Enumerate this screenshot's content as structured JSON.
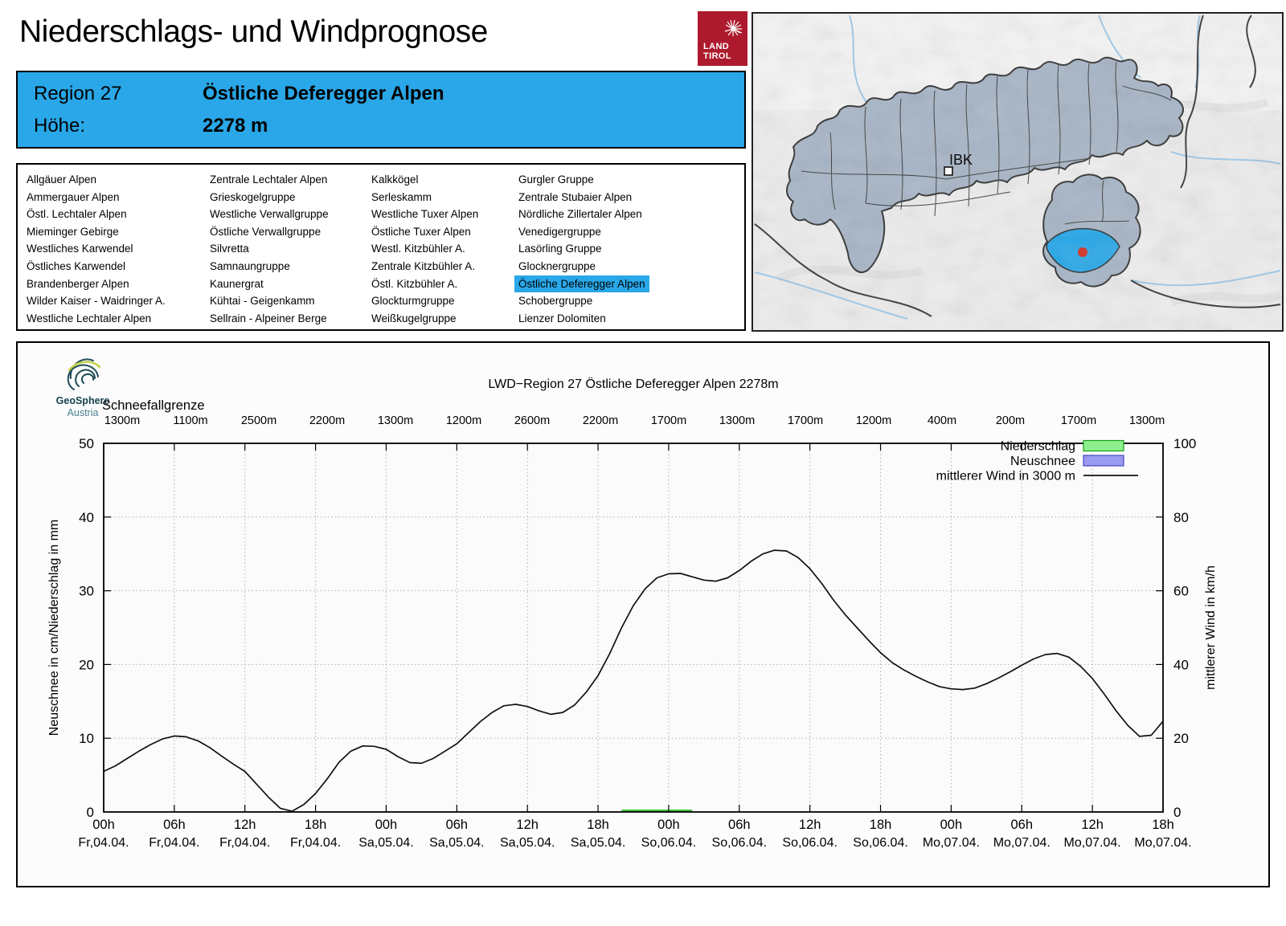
{
  "header": {
    "title": "Niederschlags- und Windprognose"
  },
  "land_tirol": {
    "line1": "LAND",
    "line2": "TIROL"
  },
  "region_info": {
    "region_label": "Region 27",
    "region_name": "Östliche Deferegger Alpen",
    "altitude_label": "Höhe:",
    "altitude_value": "2278 m"
  },
  "region_list": {
    "selected": "Östliche Deferegger Alpen",
    "columns": [
      [
        "Allgäuer Alpen",
        "Ammergauer Alpen",
        "Östl. Lechtaler Alpen",
        "Mieminger Gebirge",
        "Westliches Karwendel",
        "Östliches Karwendel",
        "Brandenberger Alpen",
        "Wilder Kaiser - Waidringer A.",
        "Westliche Lechtaler Alpen"
      ],
      [
        "Zentrale Lechtaler Alpen",
        "Grieskogelgruppe",
        "Westliche Verwallgruppe",
        "Östliche Verwallgruppe",
        "Silvretta",
        "Samnaungruppe",
        "Kaunergrat",
        "Kühtai - Geigenkamm",
        "Sellrain - Alpeiner Berge"
      ],
      [
        "Kalkkögel",
        "Serleskamm",
        "Westliche Tuxer Alpen",
        "Östliche Tuxer Alpen",
        "Westl. Kitzbühler A.",
        "Zentrale Kitzbühler A.",
        "Östl. Kitzbühler A.",
        "Glockturmgruppe",
        "Weißkugelgruppe"
      ],
      [
        "Gurgler Gruppe",
        "Zentrale Stubaier Alpen",
        "Nördliche Zillertaler Alpen",
        "Venedigergruppe",
        "Lasörling Gruppe",
        "Glocknergruppe",
        "Östliche Deferegger Alpen",
        "Schobergruppe",
        "Lienzer Dolomiten"
      ]
    ]
  },
  "map": {
    "ibk_label": "IBK",
    "selected_region_color": "#29a7e8",
    "region_fill": "#a7b5c6",
    "marker_color": "#d22a1a"
  },
  "geosphere": {
    "name": "GeoSphere",
    "country": "Austria"
  },
  "colors": {
    "accent_blue": "#29a7e8",
    "tirol_red": "#ad1a2d"
  },
  "chart_data": {
    "type": "line",
    "title": "LWD−Region 27 Östliche Deferegger Alpen 2278m",
    "snowline_label": "Schneefallgrenze",
    "snowline_values": [
      "1300m",
      "1100m",
      "2500m",
      "2200m",
      "1300m",
      "1200m",
      "2600m",
      "2200m",
      "1700m",
      "1300m",
      "1700m",
      "1200m",
      "400m",
      "200m",
      "1700m",
      "1300m"
    ],
    "ylabel_left": "Neuschnee in cm/Niederschlag in mm",
    "ylabel_right": "mittlerer Wind in km/h",
    "ylim_left": [
      0,
      50
    ],
    "ylim_right": [
      0,
      100
    ],
    "yticks_left": [
      0,
      10,
      20,
      30,
      40,
      50
    ],
    "yticks_right": [
      0,
      20,
      40,
      60,
      80,
      100
    ],
    "grid": "dotted",
    "legend_position": "top-right",
    "x_ticks": [
      {
        "time": "00h",
        "date": "Fr,04.04."
      },
      {
        "time": "06h",
        "date": "Fr,04.04."
      },
      {
        "time": "12h",
        "date": "Fr,04.04."
      },
      {
        "time": "18h",
        "date": "Fr,04.04."
      },
      {
        "time": "00h",
        "date": "Sa,05.04."
      },
      {
        "time": "06h",
        "date": "Sa,05.04."
      },
      {
        "time": "12h",
        "date": "Sa,05.04."
      },
      {
        "time": "18h",
        "date": "Sa,05.04."
      },
      {
        "time": "00h",
        "date": "So,06.04."
      },
      {
        "time": "06h",
        "date": "So,06.04."
      },
      {
        "time": "12h",
        "date": "So,06.04."
      },
      {
        "time": "18h",
        "date": "So,06.04."
      },
      {
        "time": "00h",
        "date": "Mo,07.04."
      },
      {
        "time": "06h",
        "date": "Mo,07.04."
      },
      {
        "time": "12h",
        "date": "Mo,07.04."
      },
      {
        "time": "18h",
        "date": "Mo,07.04."
      }
    ],
    "legend": [
      {
        "label": "Niederschlag",
        "swatch": "box",
        "fill": "#8df08d",
        "stroke": "#18a018"
      },
      {
        "label": "Neuschnee",
        "swatch": "box",
        "fill": "#9a9af0",
        "stroke": "#4646c8"
      },
      {
        "label": "mittlerer Wind in 3000 m",
        "swatch": "line",
        "stroke": "#111111"
      }
    ],
    "wind_series": {
      "name": "mittlerer Wind in 3000 m",
      "unit": "km/h",
      "axis": "right",
      "start_hour": 0,
      "step_hours": 1,
      "values_kmh": [
        11.0,
        12.5,
        14.5,
        16.5,
        18.3,
        19.8,
        20.6,
        20.4,
        19.3,
        17.5,
        15.2,
        13.0,
        11.0,
        7.5,
        4.0,
        1.0,
        0.2,
        2.0,
        5.0,
        9.0,
        13.5,
        16.5,
        17.9,
        17.8,
        17.0,
        15.0,
        13.4,
        13.2,
        14.5,
        16.5,
        18.5,
        21.5,
        24.5,
        27.0,
        28.8,
        29.2,
        28.6,
        27.4,
        26.5,
        27.0,
        29.0,
        32.5,
        37.0,
        43.0,
        50.0,
        56.0,
        60.5,
        63.5,
        64.6,
        64.7,
        63.8,
        62.9,
        62.6,
        63.5,
        65.5,
        68.0,
        70.0,
        71.0,
        70.8,
        69.0,
        66.0,
        62.0,
        57.5,
        53.5,
        50.0,
        46.5,
        43.2,
        40.5,
        38.5,
        36.8,
        35.3,
        34.0,
        33.4,
        33.2,
        33.6,
        34.8,
        36.3,
        38.0,
        39.8,
        41.5,
        42.7,
        43.0,
        42.0,
        39.5,
        36.2,
        32.0,
        27.5,
        23.5,
        20.5,
        20.8,
        24.6
      ]
    },
    "precipitation_bars": [
      {
        "series": "Niederschlag",
        "start_hour": 44,
        "end_hour": 50,
        "value_mm": 0.3,
        "color": "#3fbf3f"
      }
    ]
  }
}
